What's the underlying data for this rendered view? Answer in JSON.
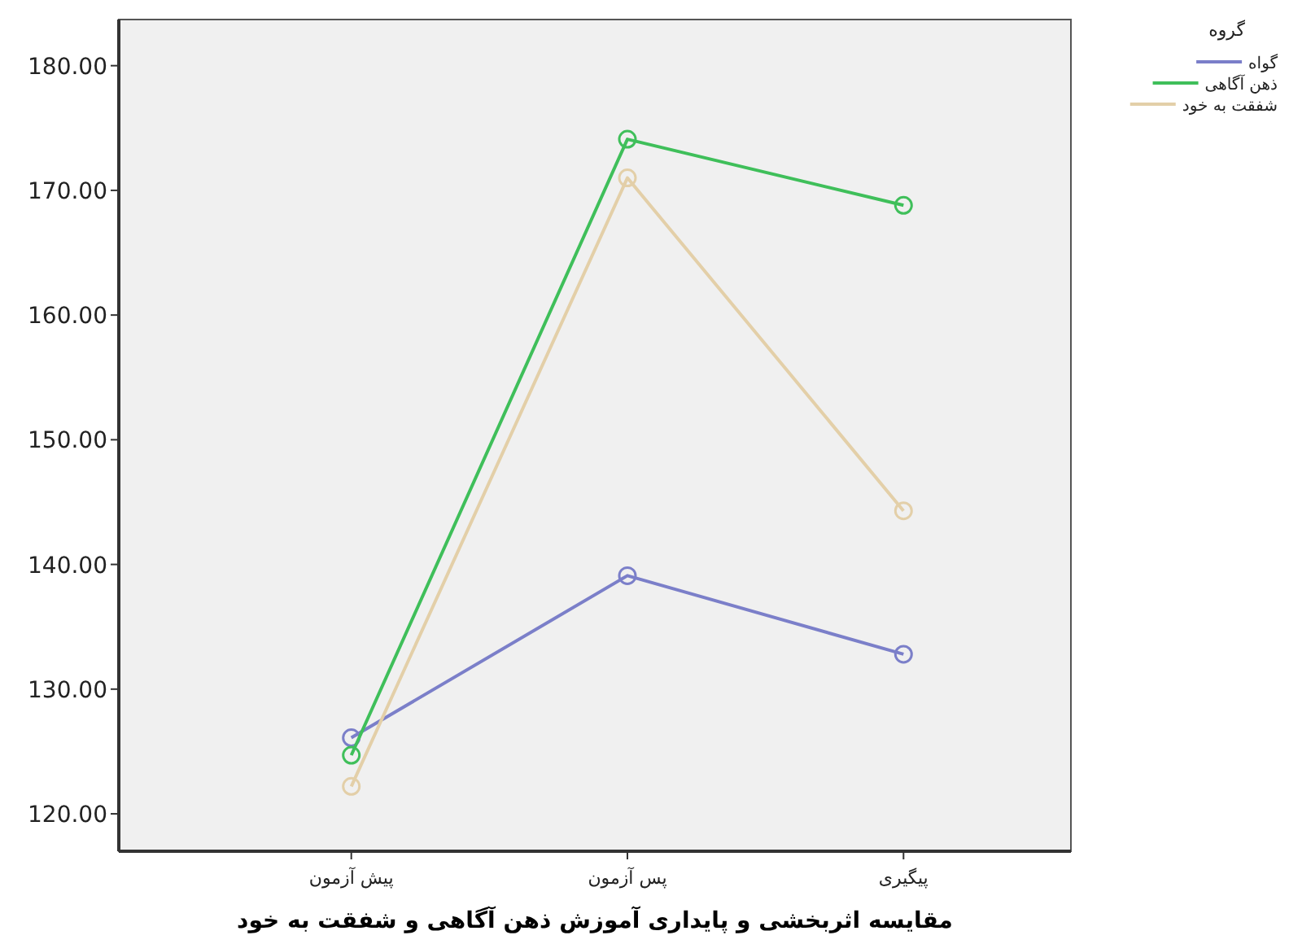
{
  "chart_data": {
    "type": "line",
    "xlabel": "مقایسه اثربخشی و پایداری آموزش ذهن آگاهی و شفقت به خود",
    "legend_title": "گروه",
    "legend": "right",
    "marker": "circle",
    "grid": false,
    "categories": [
      "پیش آزمون",
      "پس آزمون",
      "پیگیری"
    ],
    "ylim": [
      117,
      183.7
    ],
    "yticks": [
      {
        "value": 120,
        "label": "120.00"
      },
      {
        "value": 130,
        "label": "130.00"
      },
      {
        "value": 140,
        "label": "140.00"
      },
      {
        "value": 150,
        "label": "150.00"
      },
      {
        "value": 160,
        "label": "160.00"
      },
      {
        "value": 170,
        "label": "170.00"
      },
      {
        "value": 180,
        "label": "180.00"
      }
    ],
    "series": [
      {
        "name": "گواه",
        "color": "#7b7fc9",
        "values": [
          126.1,
          139.1,
          132.8
        ]
      },
      {
        "name": "ذهن آگاهی",
        "color": "#3fbf5a",
        "values": [
          124.7,
          174.1,
          168.8
        ]
      },
      {
        "name": "شفقت به خود",
        "color": "#e3cfa8",
        "values": [
          122.2,
          171.0,
          144.3
        ]
      }
    ]
  }
}
